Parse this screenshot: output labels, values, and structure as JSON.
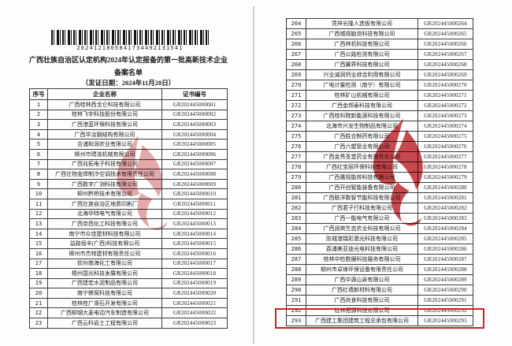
{
  "document": {
    "barcode_number": "2024121805841734492131541",
    "title": "广西壮族自治区认定机构2024年认定报备的第一批高新技术企业",
    "subtitle": "备案名单",
    "issue_date_line": "（发证日期：2024年11月28日）",
    "headers": {
      "no": "序号",
      "name": "企业名称",
      "cert": "证书编号"
    }
  },
  "left_table": {
    "rows": [
      {
        "no": "1",
        "name": "广西桂林西戈仑科技有限公司",
        "cert": "GR202445000001"
      },
      {
        "no": "2",
        "name": "桂林飞宇科技股份有限公司",
        "cert": "GR202445000002"
      },
      {
        "no": "3",
        "name": "广西港蓝环保科技有限公司",
        "cert": "GR202445000003"
      },
      {
        "no": "4",
        "name": "广西华冶钢结构有限公司",
        "cert": "GR202445000004"
      },
      {
        "no": "5",
        "name": "合浦和润农业有限公司",
        "cert": "GR202445000005"
      },
      {
        "no": "6",
        "name": "柳州市骋浩机械有限公司",
        "cert": "GR202445000006"
      },
      {
        "no": "7",
        "name": "广西兆拓电子科技有限公司",
        "cert": "GR202445000007"
      },
      {
        "no": "8",
        "name": "广西壮物金焊制冷空调技术有限责任公司",
        "cert": "GR202445000008"
      },
      {
        "no": "9",
        "name": "广西数字广测科技有限公司",
        "cert": "GR202445000009"
      },
      {
        "no": "10",
        "name": "柳州黔桥技术有限公司",
        "cert": "GR202445000010"
      },
      {
        "no": "11",
        "name": "广西壮族自治区地质印刷厂",
        "cert": "GR202445000011"
      },
      {
        "no": "12",
        "name": "北海华特电气有限公司",
        "cert": "GR202445000012"
      },
      {
        "no": "13",
        "name": "广西京西化工科技有限公司",
        "cert": "GR202445000013"
      },
      {
        "no": "14",
        "name": "南宁市众佳建材科技有限公司",
        "cert": "GR202445000014"
      },
      {
        "no": "15",
        "name": "益路恒丰(广西)科技有限公司",
        "cert": "GR202445000015"
      },
      {
        "no": "16",
        "name": "柳州市杰特建材有限责任公司",
        "cert": "GR202445000016"
      },
      {
        "no": "17",
        "name": "钦州南海化工有限公司",
        "cert": "GR202445000017"
      },
      {
        "no": "18",
        "name": "梧州国光科技发展有限公司",
        "cert": "GR202445000018"
      },
      {
        "no": "19",
        "name": "广西建宏水泥制品有限公司",
        "cert": "GR202445000019"
      },
      {
        "no": "20",
        "name": "南宁蜂窝科技有限公司",
        "cert": "GR202445000020"
      },
      {
        "no": "21",
        "name": "桂林桂广滑石开发有限公司",
        "cert": "GR202445000021"
      },
      {
        "no": "22",
        "name": "广西柳钢大菱电动汽车制造有限公司",
        "cert": "GR202445000022"
      },
      {
        "no": "23",
        "name": "广西云科岩土工程有限公司",
        "cert": "GR202445000023"
      }
    ]
  },
  "right_table": {
    "rows": [
      {
        "no": "264",
        "name": "凭祥长隆人造板有限公司",
        "cert": "GR202445000264"
      },
      {
        "no": "265",
        "name": "广西城规勘测科技有限公司",
        "cert": "GR202445000265"
      },
      {
        "no": "266",
        "name": "广西林机科技有限公司",
        "cert": "GR202445000266"
      },
      {
        "no": "267",
        "name": "广西公路检测有限公司",
        "cert": "GR202445000267"
      },
      {
        "no": "268",
        "name": "广西翼界科技有限公司",
        "cert": "GR202445000268"
      },
      {
        "no": "269",
        "name": "兴业诚润钙业综合利用有限公司",
        "cert": "GR202445000269"
      },
      {
        "no": "270",
        "name": "广电计量检测（南宁）有限公司",
        "cert": "GR202445000270"
      },
      {
        "no": "271",
        "name": "桂林矿山机械有限公司",
        "cert": "GR202445000271"
      },
      {
        "no": "272",
        "name": "广西金邦泰科技有限公司",
        "cert": "GR202445000272"
      },
      {
        "no": "273",
        "name": "广西桂科院新能源科技有限公司",
        "cert": "GR202445000273"
      },
      {
        "no": "274",
        "name": "北海市兴龙生物制品有限公司",
        "cert": "GR202445000274"
      },
      {
        "no": "275",
        "name": "广西胜合制药有限公司",
        "cert": "GR202445000275"
      },
      {
        "no": "276",
        "name": "广西六塑管业有限公司",
        "cert": "GR202445000276"
      },
      {
        "no": "277",
        "name": "广西金秀圣堂药业有限责任公司",
        "cert": "GR202445000277"
      },
      {
        "no": "278",
        "name": "广西红宝丽环保科技有限公司",
        "cert": "GR202445000278"
      },
      {
        "no": "279",
        "name": "广西鹰视能效科技有限公司",
        "cert": "GR202445000279"
      },
      {
        "no": "280",
        "name": "广西开创智能装备有限公司",
        "cert": "GR202445000280"
      },
      {
        "no": "281",
        "name": "广西联洋数智节能科技有限公司",
        "cert": "GR202445000281"
      },
      {
        "no": "282",
        "name": "广西君子行科技有限公司",
        "cert": "GR202445000282"
      },
      {
        "no": "283",
        "name": "广西一能电气有限公司",
        "cert": "GR202445000283"
      },
      {
        "no": "284",
        "name": "广西润爽生态农业科技有限公司",
        "cert": "GR202445000284"
      },
      {
        "no": "285",
        "name": "防城港瑞彩激光科技有限公司",
        "cert": "GR202445000285"
      },
      {
        "no": "286",
        "name": "荔浦美亚迪光电科技有限公司",
        "cert": "GR202445000286"
      },
      {
        "no": "287",
        "name": "桂林中检数据科技服务有限公司",
        "cert": "GR202445000287"
      },
      {
        "no": "288",
        "name": "柳州市卓锋环保设备有限责任公司",
        "cert": "GR202445000288"
      },
      {
        "no": "289",
        "name": "广西中源山泉有限公司",
        "cert": "GR202445000289"
      },
      {
        "no": "290",
        "name": "广西红墙新材料有限公司",
        "cert": "GR202445000290"
      },
      {
        "no": "291",
        "name": "广西尚食科技有限公司",
        "cert": "GR202445000291"
      },
      {
        "no": "292",
        "name": "桂林拓源科技有限公司",
        "cert": "GR202445000292"
      },
      {
        "no": "293",
        "name": "广西建工集团建筑工程总承包有限公司",
        "cert": "GR202445000293"
      }
    ]
  },
  "annotations": {
    "highlight_row_no": "293",
    "highlight_color": "#d32120"
  },
  "watermark": {
    "icon": "torch-flame-logo",
    "color": "#c1272d"
  }
}
